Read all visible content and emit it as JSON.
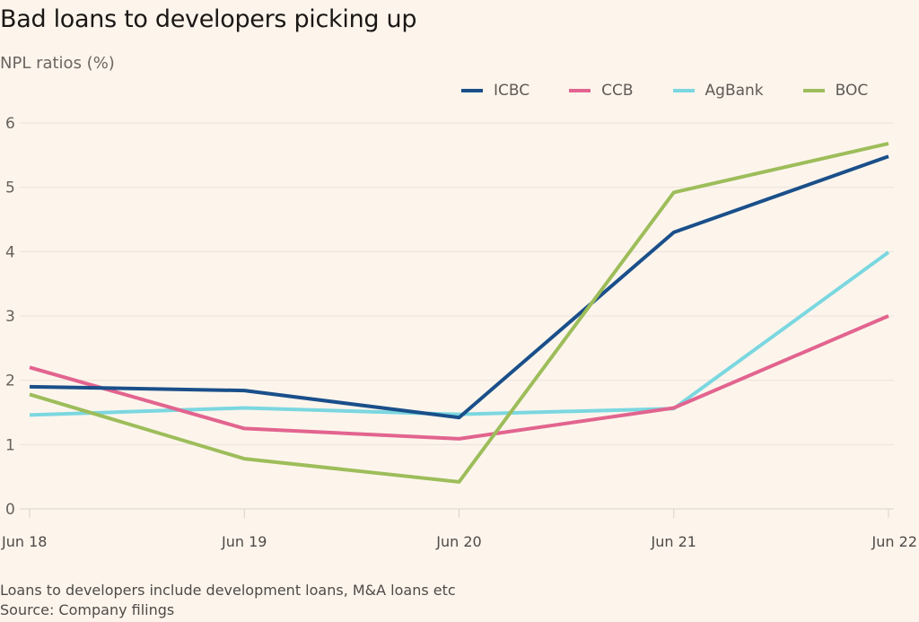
{
  "chart_data": {
    "type": "line",
    "title": "Bad loans to developers picking up",
    "subtitle": "NPL ratios (%)",
    "xlabel": "",
    "ylabel": "NPL ratios (%)",
    "x": [
      "Jun 18",
      "Jun 19",
      "Jun 20",
      "Jun 21",
      "Jun 22"
    ],
    "ylim": [
      0,
      6
    ],
    "yticks": [
      0,
      1,
      2,
      3,
      4,
      5,
      6
    ],
    "grid": true,
    "legend_position": "top-right",
    "series": [
      {
        "name": "ICBC",
        "color": "#1a4f8a",
        "values": [
          1.9,
          1.84,
          1.42,
          4.3,
          5.48
        ]
      },
      {
        "name": "CCB",
        "color": "#e2648f",
        "values": [
          2.2,
          1.25,
          1.09,
          1.57,
          3.0
        ]
      },
      {
        "name": "AgBank",
        "color": "#7bd7e0",
        "values": [
          1.46,
          1.57,
          1.47,
          1.56,
          3.99
        ]
      },
      {
        "name": "BOC",
        "color": "#9dbd5a",
        "values": [
          1.78,
          0.78,
          0.42,
          4.92,
          5.68
        ]
      }
    ]
  },
  "footnotes": {
    "note": "Loans to developers include development loans, M&A loans etc",
    "source": "Source: Company filings"
  }
}
